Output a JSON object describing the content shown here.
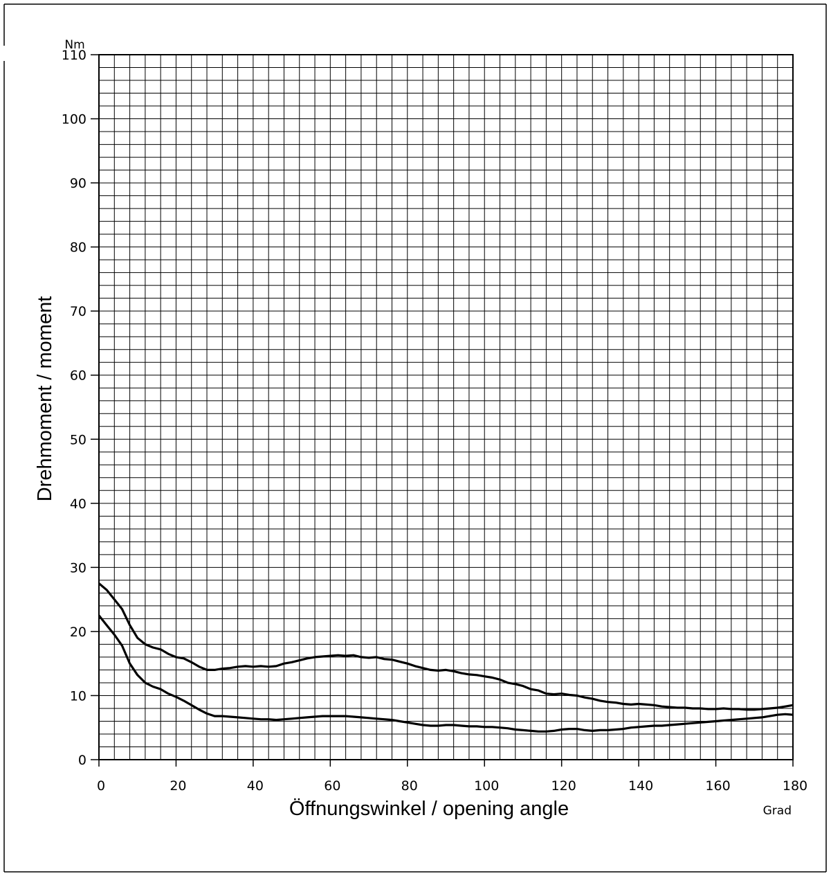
{
  "chart_data": {
    "type": "line",
    "title": "",
    "xlabel": "Öffnungswinkel / opening angle",
    "ylabel": "Drehmoment / moment",
    "x_unit": "Grad",
    "y_unit": "Nm",
    "xlim": [
      0,
      180
    ],
    "ylim": [
      0,
      110
    ],
    "x_ticks": [
      0,
      20,
      40,
      60,
      80,
      100,
      120,
      140,
      160,
      180
    ],
    "y_ticks": [
      0,
      10,
      20,
      30,
      40,
      50,
      60,
      70,
      80,
      90,
      100,
      110
    ],
    "minor_grid_x_step": 4,
    "minor_grid_y_step": 2,
    "grid": true,
    "series": [
      {
        "points": [
          [
            0,
            27.5
          ],
          [
            2,
            26.5
          ],
          [
            4,
            25
          ],
          [
            6,
            23.5
          ],
          [
            8,
            21
          ],
          [
            10,
            19
          ],
          [
            12,
            18
          ],
          [
            14,
            17.5
          ],
          [
            16,
            17.2
          ],
          [
            18,
            16.5
          ],
          [
            20,
            16
          ],
          [
            22,
            15.8
          ],
          [
            24,
            15.2
          ],
          [
            26,
            14.5
          ],
          [
            28,
            14
          ],
          [
            30,
            14
          ],
          [
            32,
            14.2
          ],
          [
            34,
            14.3
          ],
          [
            36,
            14.5
          ],
          [
            38,
            14.6
          ],
          [
            40,
            14.5
          ],
          [
            42,
            14.6
          ],
          [
            44,
            14.5
          ],
          [
            46,
            14.6
          ],
          [
            48,
            15
          ],
          [
            50,
            15.2
          ],
          [
            52,
            15.5
          ],
          [
            54,
            15.8
          ],
          [
            56,
            16
          ],
          [
            58,
            16.1
          ],
          [
            60,
            16.2
          ],
          [
            62,
            16.3
          ],
          [
            64,
            16.2
          ],
          [
            66,
            16.3
          ],
          [
            68,
            16
          ],
          [
            70,
            15.9
          ],
          [
            72,
            16
          ],
          [
            74,
            15.7
          ],
          [
            76,
            15.6
          ],
          [
            78,
            15.3
          ],
          [
            80,
            15
          ],
          [
            82,
            14.6
          ],
          [
            84,
            14.3
          ],
          [
            86,
            14
          ],
          [
            88,
            13.9
          ],
          [
            90,
            14
          ],
          [
            92,
            13.8
          ],
          [
            94,
            13.5
          ],
          [
            96,
            13.3
          ],
          [
            98,
            13.2
          ],
          [
            100,
            13
          ],
          [
            102,
            12.8
          ],
          [
            104,
            12.5
          ],
          [
            106,
            12
          ],
          [
            108,
            11.8
          ],
          [
            110,
            11.5
          ],
          [
            112,
            11
          ],
          [
            114,
            10.8
          ],
          [
            116,
            10.3
          ],
          [
            118,
            10.2
          ],
          [
            120,
            10.3
          ],
          [
            122,
            10.1
          ],
          [
            124,
            10
          ],
          [
            126,
            9.7
          ],
          [
            128,
            9.5
          ],
          [
            130,
            9.2
          ],
          [
            132,
            9
          ],
          [
            134,
            8.9
          ],
          [
            136,
            8.7
          ],
          [
            138,
            8.6
          ],
          [
            140,
            8.7
          ],
          [
            142,
            8.6
          ],
          [
            144,
            8.5
          ],
          [
            146,
            8.3
          ],
          [
            148,
            8.2
          ],
          [
            150,
            8.1
          ],
          [
            152,
            8.1
          ],
          [
            154,
            8.0
          ],
          [
            156,
            8.0
          ],
          [
            158,
            7.9
          ],
          [
            160,
            7.9
          ],
          [
            162,
            8.0
          ],
          [
            164,
            7.9
          ],
          [
            166,
            7.9
          ],
          [
            168,
            7.8
          ],
          [
            170,
            7.8
          ],
          [
            172,
            7.9
          ],
          [
            174,
            8.0
          ],
          [
            176,
            8.1
          ],
          [
            178,
            8.3
          ],
          [
            180,
            8.5
          ]
        ]
      },
      {
        "points": [
          [
            0,
            22.5
          ],
          [
            2,
            21
          ],
          [
            4,
            19.5
          ],
          [
            6,
            17.8
          ],
          [
            8,
            15
          ],
          [
            10,
            13.2
          ],
          [
            12,
            12
          ],
          [
            14,
            11.4
          ],
          [
            16,
            11
          ],
          [
            18,
            10.3
          ],
          [
            20,
            9.8
          ],
          [
            22,
            9.2
          ],
          [
            24,
            8.5
          ],
          [
            26,
            7.8
          ],
          [
            28,
            7.2
          ],
          [
            30,
            6.8
          ],
          [
            32,
            6.8
          ],
          [
            34,
            6.7
          ],
          [
            36,
            6.6
          ],
          [
            38,
            6.5
          ],
          [
            40,
            6.4
          ],
          [
            42,
            6.3
          ],
          [
            44,
            6.3
          ],
          [
            46,
            6.2
          ],
          [
            48,
            6.3
          ],
          [
            50,
            6.4
          ],
          [
            52,
            6.5
          ],
          [
            54,
            6.6
          ],
          [
            56,
            6.7
          ],
          [
            58,
            6.8
          ],
          [
            60,
            6.8
          ],
          [
            62,
            6.8
          ],
          [
            64,
            6.8
          ],
          [
            66,
            6.7
          ],
          [
            68,
            6.6
          ],
          [
            70,
            6.5
          ],
          [
            72,
            6.4
          ],
          [
            74,
            6.3
          ],
          [
            76,
            6.2
          ],
          [
            78,
            6
          ],
          [
            80,
            5.8
          ],
          [
            82,
            5.6
          ],
          [
            84,
            5.4
          ],
          [
            86,
            5.3
          ],
          [
            88,
            5.3
          ],
          [
            90,
            5.4
          ],
          [
            92,
            5.4
          ],
          [
            94,
            5.3
          ],
          [
            96,
            5.2
          ],
          [
            98,
            5.2
          ],
          [
            100,
            5.1
          ],
          [
            102,
            5.1
          ],
          [
            104,
            5.0
          ],
          [
            106,
            4.9
          ],
          [
            108,
            4.7
          ],
          [
            110,
            4.6
          ],
          [
            112,
            4.5
          ],
          [
            114,
            4.4
          ],
          [
            116,
            4.4
          ],
          [
            118,
            4.5
          ],
          [
            120,
            4.7
          ],
          [
            122,
            4.8
          ],
          [
            124,
            4.8
          ],
          [
            126,
            4.6
          ],
          [
            128,
            4.5
          ],
          [
            130,
            4.6
          ],
          [
            132,
            4.6
          ],
          [
            134,
            4.7
          ],
          [
            136,
            4.8
          ],
          [
            138,
            5
          ],
          [
            140,
            5.1
          ],
          [
            142,
            5.2
          ],
          [
            144,
            5.3
          ],
          [
            146,
            5.3
          ],
          [
            148,
            5.4
          ],
          [
            150,
            5.5
          ],
          [
            152,
            5.6
          ],
          [
            154,
            5.7
          ],
          [
            156,
            5.8
          ],
          [
            158,
            5.9
          ],
          [
            160,
            6
          ],
          [
            162,
            6.1
          ],
          [
            164,
            6.2
          ],
          [
            166,
            6.3
          ],
          [
            168,
            6.4
          ],
          [
            170,
            6.5
          ],
          [
            172,
            6.6
          ],
          [
            174,
            6.8
          ],
          [
            176,
            7
          ],
          [
            178,
            7.1
          ],
          [
            180,
            7.0
          ]
        ]
      }
    ]
  }
}
